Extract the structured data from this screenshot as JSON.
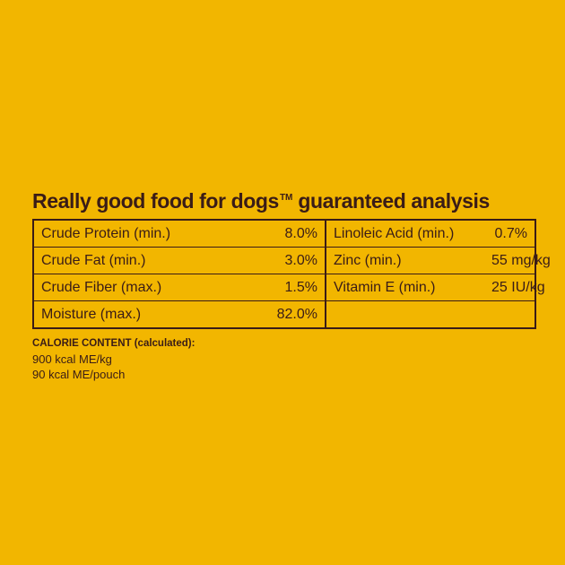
{
  "headline": {
    "text": "Really good food for dogs",
    "trademark": "TM",
    "suffix": " guaranteed analysis"
  },
  "analysis": {
    "rows": [
      {
        "left_name": "Crude Protein (min.)",
        "left_value": "8.0%",
        "right_name": "Linoleic Acid (min.)",
        "right_value": "0.7%"
      },
      {
        "left_name": "Crude Fat (min.)",
        "left_value": "3.0%",
        "right_name": "Zinc (min.)",
        "right_value": "55 mg/kg"
      },
      {
        "left_name": "Crude Fiber (max.)",
        "left_value": "1.5%",
        "right_name": "Vitamin E (min.)",
        "right_value": "25 IU/kg"
      },
      {
        "left_name": "Moisture (max.)",
        "left_value": "82.0%",
        "right_name": "",
        "right_value": ""
      }
    ]
  },
  "calorie": {
    "title": "CALORIE CONTENT (calculated):",
    "lines": [
      "900 kcal ME/kg",
      "90 kcal ME/pouch"
    ]
  },
  "colors": {
    "background": "#f2b600",
    "text": "#3a1c17"
  }
}
